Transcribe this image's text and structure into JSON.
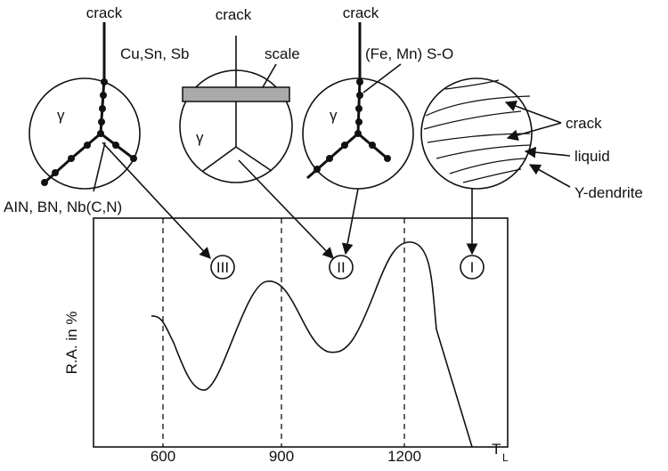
{
  "labels": {
    "crack_1": "crack",
    "crack_2": "crack",
    "crack_3": "crack",
    "segregants": "Cu,Sn, Sb",
    "scale": "scale",
    "sulfide": "(Fe, Mn) S-O",
    "gamma_1": "γ",
    "gamma_2": "γ",
    "gamma_3": "γ",
    "crack_4": "crack",
    "liquid": "liquid",
    "dendrite": "Y-dendrite",
    "precipitates": "AIN, BN, Nb(C,N)"
  },
  "regions": [
    "III",
    "II",
    "I"
  ],
  "axis": {
    "y_label": "R.A. in %",
    "ticks": [
      "600",
      "900",
      "1200"
    ],
    "end_label": "T",
    "end_sub": "L"
  }
}
